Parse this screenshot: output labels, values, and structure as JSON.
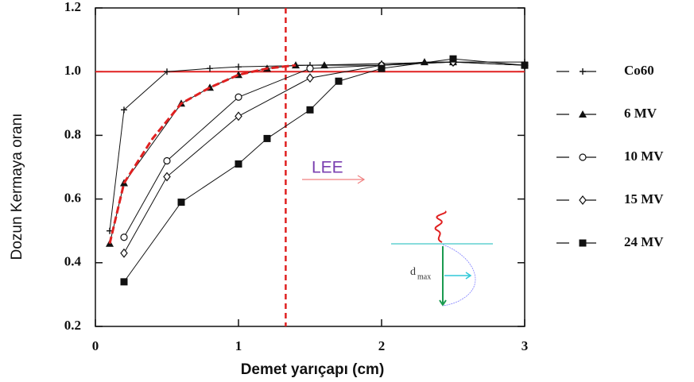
{
  "chart_data": {
    "type": "line",
    "xlabel": "Demet yarıçapı (cm)",
    "ylabel": "Dozun Kermaya oranı",
    "xlim": [
      0,
      3
    ],
    "xticks": [
      0,
      1,
      2,
      3
    ],
    "ylim": [
      0.2,
      1.2
    ],
    "yticks": [
      0.2,
      0.4,
      0.6,
      0.8,
      {
        "value": 1,
        "label": "1.0"
      },
      1.2
    ],
    "series": [
      {
        "name": "Co60",
        "color": "#111111",
        "marker": "plus",
        "x": [
          0.1,
          0.2,
          0.5,
          0.8,
          1.0,
          1.5,
          2.0,
          2.5,
          3.0
        ],
        "values": [
          0.5,
          0.88,
          1.0,
          1.01,
          1.015,
          1.02,
          1.025,
          1.03,
          1.03
        ]
      },
      {
        "name": "6 MV",
        "color": "#111111",
        "marker": "triangle",
        "x": [
          0.1,
          0.2,
          0.6,
          0.8,
          1.0,
          1.2,
          1.4,
          1.6,
          2.0,
          2.3,
          2.5
        ],
        "values": [
          0.46,
          0.65,
          0.9,
          0.95,
          0.99,
          1.01,
          1.02,
          1.02,
          1.02,
          1.03,
          1.03
        ]
      },
      {
        "name": "10 MV",
        "color": "#111111",
        "marker": "circle",
        "x": [
          0.2,
          0.5,
          1.0,
          1.5,
          2.0,
          2.5,
          3.0
        ],
        "values": [
          0.48,
          0.72,
          0.92,
          1.01,
          1.02,
          1.03,
          1.02
        ]
      },
      {
        "name": "15 MV",
        "color": "#111111",
        "marker": "diamond",
        "x": [
          0.2,
          0.5,
          1.0,
          1.5,
          2.0,
          2.5,
          3.0
        ],
        "values": [
          0.43,
          0.67,
          0.86,
          0.98,
          1.02,
          1.03,
          1.02
        ]
      },
      {
        "name": "24 MV",
        "color": "#111111",
        "marker": "square",
        "x": [
          0.2,
          0.6,
          1.0,
          1.2,
          1.5,
          1.7,
          2.0,
          2.5,
          3.0
        ],
        "values": [
          0.34,
          0.59,
          0.71,
          0.79,
          0.88,
          0.97,
          1.01,
          1.04,
          1.02
        ]
      }
    ],
    "annotation_curve": {
      "color": "#e02020",
      "x": [
        0.1,
        0.2,
        0.4,
        0.6,
        0.8,
        1.0,
        1.2,
        1.4
      ],
      "values": [
        0.46,
        0.65,
        0.79,
        0.9,
        0.95,
        0.99,
        1.01,
        1.02
      ]
    },
    "reference_lines": {
      "color": "#e02020",
      "vertical_x": 1.33,
      "horizontal_y": 1.0
    },
    "annotation": "LEE",
    "inset_label": {
      "base": "d",
      "sub": "max"
    }
  }
}
